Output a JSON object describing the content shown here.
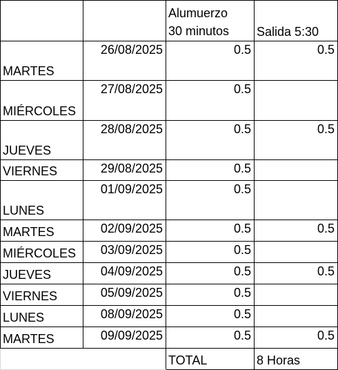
{
  "header": {
    "lunch_line1": "Alumuerzo",
    "lunch_line2": "30 minutos",
    "exit": "Salida 5:30"
  },
  "rows": [
    {
      "day": "MARTES",
      "date": "26/08/2025",
      "lunch": "0.5",
      "exit": "0.5"
    },
    {
      "day": "MIÉRCOLES",
      "date": "27/08/2025",
      "lunch": "0.5",
      "exit": ""
    },
    {
      "day": "JUEVES",
      "date": "28/08/2025",
      "lunch": "0.5",
      "exit": "0.5"
    },
    {
      "day": "VIERNES",
      "date": "29/08/2025",
      "lunch": "0.5",
      "exit": ""
    },
    {
      "day": "LUNES",
      "date": "01/09/2025",
      "lunch": "0.5",
      "exit": ""
    },
    {
      "day": "MARTES",
      "date": "02/09/2025",
      "lunch": "0.5",
      "exit": "0.5"
    },
    {
      "day": "MIÉRCOLES",
      "date": "03/09/2025",
      "lunch": "0.5",
      "exit": ""
    },
    {
      "day": "JUEVES",
      "date": "04/09/2025",
      "lunch": "0.5",
      "exit": "0.5"
    },
    {
      "day": "VIERNES",
      "date": "05/09/2025",
      "lunch": "0.5",
      "exit": ""
    },
    {
      "day": "LUNES",
      "date": "08/09/2025",
      "lunch": "0.5",
      "exit": ""
    },
    {
      "day": "MARTES",
      "date": "09/09/2025",
      "lunch": "0.5",
      "exit": "0.5"
    }
  ],
  "footer": {
    "label": "TOTAL",
    "total": "8 Horas"
  }
}
